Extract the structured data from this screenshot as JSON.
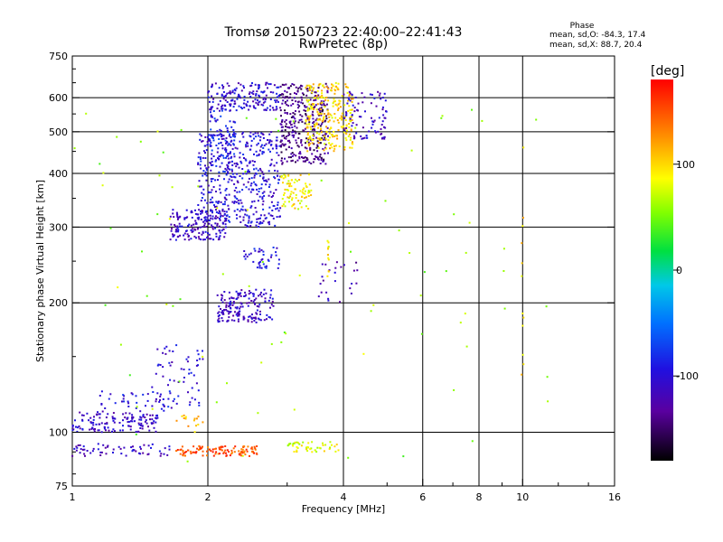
{
  "chart_data": {
    "type": "scatter",
    "title": "Tromsø 20150723 22:40:00–22:41:43",
    "subtitle": "RwPretec (8p)",
    "xlabel": "Frequency [MHz]",
    "ylabel": "Stationary phase Virtual Height [km]",
    "x_scale": "log",
    "y_scale": "log",
    "xlim": [
      1,
      16
    ],
    "ylim": [
      75,
      750
    ],
    "x_ticks": [
      1,
      2,
      4,
      6,
      8,
      10,
      16
    ],
    "x_tick_labels": [
      "1",
      "2",
      "4",
      "6",
      "8",
      "10",
      "16"
    ],
    "y_ticks": [
      75,
      100,
      200,
      300,
      400,
      500,
      600,
      750
    ],
    "y_tick_labels": [
      "75",
      "100",
      "200",
      "300",
      "400",
      "500",
      "600",
      "750"
    ],
    "grid": true,
    "phase_stats": {
      "title": "Phase",
      "line_o": "mean, sd,O: -84.3, 17.4",
      "line_x": "mean, sd,X:  88.7, 20.4"
    },
    "colorbar": {
      "label": "[deg]",
      "min": -180,
      "max": 180,
      "ticks": [
        100,
        0,
        -100
      ],
      "tick_labels": [
        "100",
        "0",
        "-100"
      ]
    },
    "clusters": [
      {
        "f0": 1.0,
        "f1": 1.55,
        "h0": 100,
        "h1": 112,
        "phase": -110,
        "n": 140
      },
      {
        "f0": 1.15,
        "f1": 1.7,
        "h0": 112,
        "h1": 125,
        "phase": -95,
        "n": 40
      },
      {
        "f0": 1.5,
        "f1": 1.95,
        "h0": 115,
        "h1": 160,
        "phase": -105,
        "n": 60
      },
      {
        "f0": 1.0,
        "f1": 1.7,
        "h0": 88,
        "h1": 94,
        "phase": -110,
        "n": 60
      },
      {
        "f0": 1.7,
        "f1": 2.6,
        "h0": 88,
        "h1": 93,
        "phase": 150,
        "n": 110
      },
      {
        "f0": 3.0,
        "f1": 3.9,
        "h0": 90,
        "h1": 95,
        "phase": 80,
        "n": 50
      },
      {
        "f0": 1.7,
        "f1": 1.95,
        "h0": 100,
        "h1": 110,
        "phase": 110,
        "n": 15
      },
      {
        "f0": 1.65,
        "f1": 2.2,
        "h0": 280,
        "h1": 330,
        "phase": -110,
        "n": 170
      },
      {
        "f0": 1.9,
        "f1": 2.9,
        "h0": 300,
        "h1": 500,
        "phase": -100,
        "n": 460
      },
      {
        "f0": 2.0,
        "f1": 2.3,
        "h0": 400,
        "h1": 560,
        "phase": -90,
        "n": 90
      },
      {
        "f0": 2.0,
        "f1": 2.9,
        "h0": 560,
        "h1": 650,
        "phase": -105,
        "n": 170
      },
      {
        "f0": 2.9,
        "f1": 3.7,
        "h0": 420,
        "h1": 650,
        "phase": -140,
        "n": 340
      },
      {
        "f0": 3.3,
        "f1": 4.2,
        "h0": 450,
        "h1": 650,
        "phase": 100,
        "n": 260
      },
      {
        "f0": 4.0,
        "f1": 5.0,
        "h0": 480,
        "h1": 620,
        "phase": -110,
        "n": 90
      },
      {
        "f0": 2.9,
        "f1": 3.4,
        "h0": 330,
        "h1": 400,
        "phase": 90,
        "n": 80
      },
      {
        "f0": 2.1,
        "f1": 2.8,
        "h0": 180,
        "h1": 215,
        "phase": -110,
        "n": 170
      },
      {
        "f0": 2.4,
        "f1": 2.9,
        "h0": 240,
        "h1": 270,
        "phase": -100,
        "n": 40
      },
      {
        "f0": 3.5,
        "f1": 4.3,
        "h0": 200,
        "h1": 250,
        "phase": -120,
        "n": 25
      },
      {
        "f0": 1.0,
        "f1": 12.0,
        "h0": 85,
        "h1": 600,
        "phase": 60,
        "n": 90
      }
    ],
    "vertical_traces": [
      {
        "f": 3.7,
        "h0": 220,
        "h1": 300,
        "phase": 95
      },
      {
        "f": 10.0,
        "h0": 100,
        "h1": 470,
        "phase": 90
      }
    ]
  }
}
